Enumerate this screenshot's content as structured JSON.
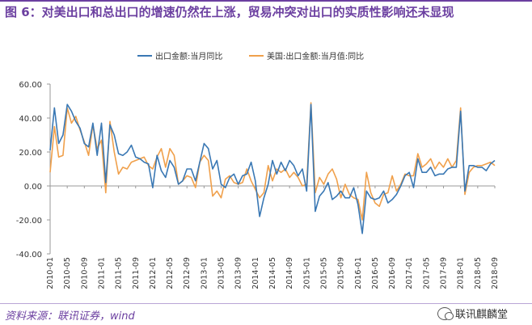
{
  "figure": {
    "title": "图 6：对美出口和总出口的增速仍然在上涨，贸易冲突对出口的实质性影响还未显现",
    "source": "资料来源：联讯证券，wind",
    "watermark": "联讯麒麟堂"
  },
  "chart_data": {
    "type": "line",
    "title": "",
    "xlabel": "",
    "ylabel": "",
    "ylim": [
      -40,
      60
    ],
    "yticks": [
      60,
      40,
      20,
      0,
      -20,
      -40
    ],
    "ytick_labels": [
      "60.00",
      "40.00",
      "20.00",
      "0.00",
      "-20.00",
      "-40.00"
    ],
    "x_tick_labels": [
      "2010-01",
      "2010-05",
      "2010-09",
      "2011-01",
      "2011-05",
      "2011-09",
      "2012-01",
      "2012-05",
      "2012-09",
      "2013-01",
      "2013-05",
      "2013-09",
      "2014-01",
      "2014-05",
      "2014-09",
      "2015-01",
      "2015-05",
      "2015-09",
      "2016-01",
      "2016-05",
      "2016-09",
      "2017-01",
      "2017-05",
      "2017-09",
      "2018-01",
      "2018-05",
      "2018-09"
    ],
    "start": "2010-01",
    "end": "2018-09",
    "series": [
      {
        "name": "出口金额:当月同比",
        "color": "#3a78b4",
        "values": [
          21,
          46,
          25,
          30,
          48,
          44,
          38,
          34,
          25,
          23,
          37,
          18,
          37,
          2,
          36,
          30,
          19,
          18,
          20,
          24,
          17,
          16,
          14,
          13,
          -1,
          18,
          9,
          5,
          15,
          11,
          1,
          3,
          10,
          10,
          3,
          14,
          25,
          22,
          10,
          15,
          1,
          -1,
          5,
          7,
          1,
          6,
          7,
          14,
          3,
          -18,
          -7,
          1,
          15,
          7,
          14,
          9,
          15,
          12,
          6,
          10,
          -3,
          48,
          -15,
          -6,
          -3,
          2,
          -8,
          -6,
          -3,
          -7,
          -7,
          -1,
          -11,
          -28,
          -3,
          -7,
          -8,
          -7,
          -3,
          -10,
          -8,
          -5,
          0,
          6,
          8,
          -1,
          16,
          8,
          8,
          11,
          6,
          7,
          7,
          10,
          11,
          11,
          44,
          -3,
          12,
          12,
          11,
          11,
          9,
          13,
          15
        ]
      },
      {
        "name": "美国:出口金额:当月值:同比",
        "color": "#f0a04b",
        "values": [
          8,
          35,
          17,
          18,
          46,
          37,
          41,
          33,
          26,
          18,
          36,
          22,
          27,
          -4,
          38,
          20,
          7,
          11,
          10,
          14,
          15,
          16,
          17,
          12,
          10,
          17,
          22,
          11,
          22,
          18,
          1,
          3,
          6,
          5,
          -1,
          14,
          18,
          15,
          -6,
          -3,
          -7,
          4,
          6,
          2,
          1,
          2,
          10,
          3,
          -2,
          -7,
          -4,
          12,
          3,
          10,
          8,
          10,
          5,
          8,
          5,
          0,
          1,
          49,
          -4,
          5,
          1,
          7,
          10,
          4,
          -7,
          1,
          -5,
          -7,
          -8,
          -20,
          8,
          -4,
          -10,
          -12,
          -5,
          -4,
          6,
          -3,
          1,
          7,
          6,
          6,
          19,
          11,
          13,
          16,
          10,
          14,
          11,
          16,
          11,
          15,
          46,
          -5,
          8,
          11,
          12,
          12,
          13,
          14,
          12
        ]
      }
    ]
  }
}
